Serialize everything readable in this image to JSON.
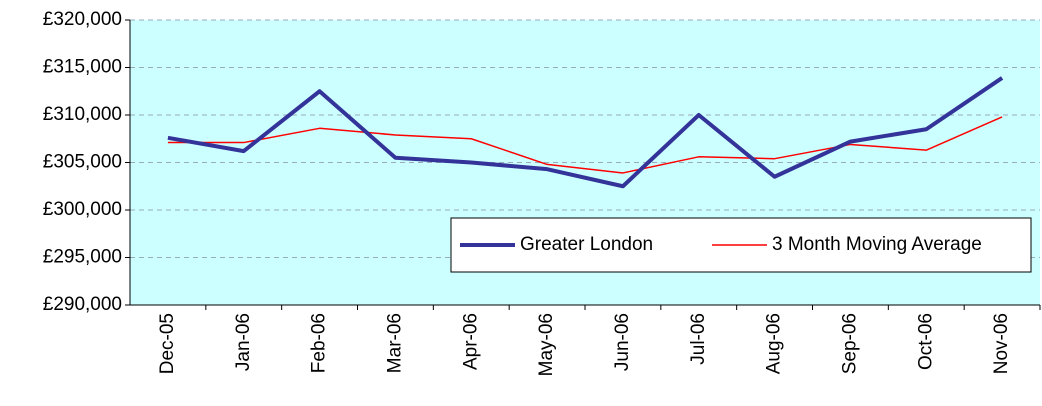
{
  "chart_data": {
    "type": "line",
    "categories": [
      "Dec-05",
      "Jan-06",
      "Feb-06",
      "Mar-06",
      "Apr-06",
      "May-06",
      "Jun-06",
      "Jul-06",
      "Aug-06",
      "Sep-06",
      "Oct-06",
      "Nov-06"
    ],
    "series": [
      {
        "name": "Greater London",
        "color": "#333399",
        "width": 4,
        "values": [
          307600,
          306200,
          312500,
          305500,
          305000,
          304300,
          302500,
          310000,
          303500,
          307200,
          308500,
          313900
        ]
      },
      {
        "name": "3 Month Moving Average",
        "color": "#ff0000",
        "width": 1.5,
        "values": [
          307100,
          307100,
          308600,
          307900,
          307500,
          304800,
          303900,
          305600,
          305400,
          306900,
          306300,
          309800
        ]
      }
    ],
    "ylim": [
      290000,
      320000
    ],
    "yticks": [
      {
        "value": 290000,
        "label": "£290,000"
      },
      {
        "value": 295000,
        "label": "£295,000"
      },
      {
        "value": 300000,
        "label": "£300,000"
      },
      {
        "value": 305000,
        "label": "£305,000"
      },
      {
        "value": 310000,
        "label": "£310,000"
      },
      {
        "value": 315000,
        "label": "£315,000"
      },
      {
        "value": 320000,
        "label": "£320,000"
      }
    ],
    "grid": true,
    "background": "#ccffff"
  }
}
